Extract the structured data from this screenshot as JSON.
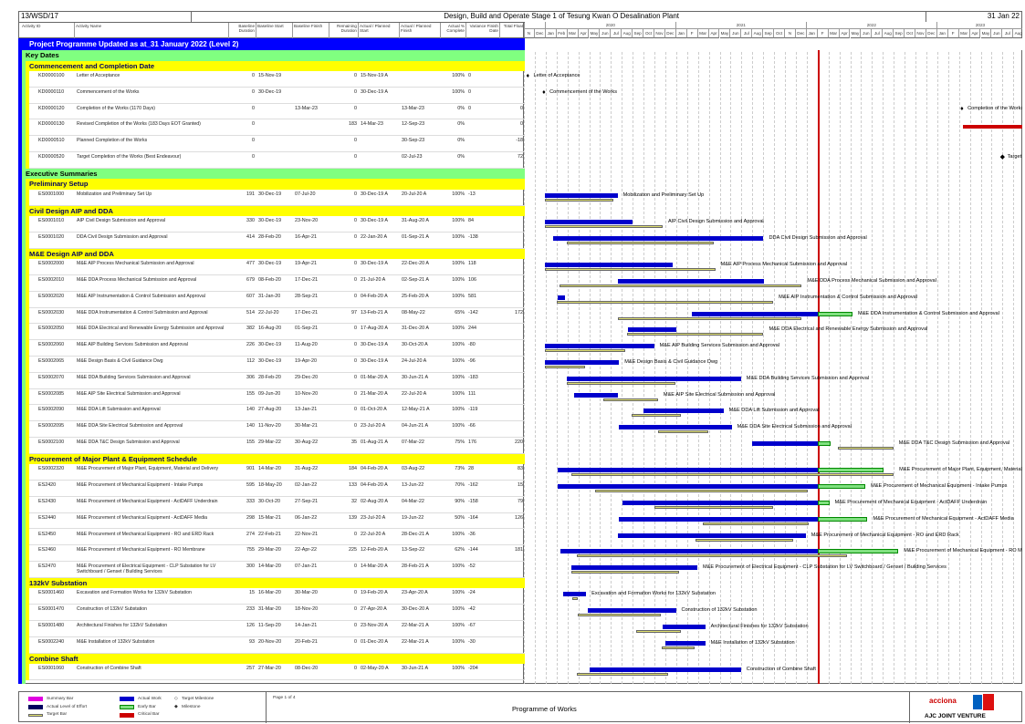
{
  "header": {
    "doc_ref": "13/WSD/17",
    "title": "Design, Build and Operate Stage 1 of Tesung Kwan O Desalination Plant",
    "date": "31 Jan 22"
  },
  "columns": [
    "Activity ID",
    "Activity Name",
    "Baseline Duration",
    "Baseline Start",
    "Baseline Finish",
    "Remaining Duration",
    "Actual / Planned Start",
    "Actual / Planned Finish",
    "Actual % Complete",
    "Variance Finish Date",
    "Total Float"
  ],
  "timeline": {
    "years": [
      "2020",
      "2021",
      "2022",
      "2023"
    ],
    "months_first": [
      "N",
      "Dec"
    ],
    "months": [
      "Jan",
      "Feb",
      "Mar",
      "Apr",
      "May",
      "Jun",
      "Jul",
      "Aug",
      "Sep",
      "Oct",
      "Nov",
      "Dec"
    ],
    "months_2021": [
      "Jan",
      "F",
      "Mar",
      "Apr",
      "May",
      "Jun",
      "Jul",
      "Aug",
      "Sep",
      "Oct",
      "N",
      "Dec"
    ],
    "months_2022": [
      "Jan",
      "F",
      "Mar",
      "Apr",
      "May",
      "Jun",
      "Jul",
      "Aug",
      "Sep",
      "Oct",
      "Nov",
      "Dec"
    ],
    "months_2023": [
      "Jan",
      "F",
      "Mar",
      "Apr",
      "May",
      "Jun",
      "Jul",
      "Aug"
    ],
    "data_date": "01-Feb-22"
  },
  "colors": {
    "project_band": "#0000ff",
    "level1_band": "#80ff80",
    "level2_band": "#ffff00",
    "actual_work": "#0000cc",
    "target_bar": "#e0e070",
    "early_bar": "#80e080",
    "critical_bar": "#cc0000",
    "data_date_line": "#cc0000"
  },
  "project": {
    "title": "Project Programme Updated as at_31 January 2022 (Level 2)"
  },
  "sections": [
    {
      "level": 1,
      "title": "Key Dates"
    },
    {
      "level": 2,
      "title": "Commencement and Completion Date",
      "rows": [
        {
          "id": "KD0000100",
          "name": "Letter of Acceptance",
          "bd": "0",
          "bs": "15-Nov-19",
          "bf": "",
          "rd": "0",
          "as": "15-Nov-19 A",
          "af": "",
          "pct": "100%",
          "var": "0",
          "tf": "",
          "type": "milestone"
        },
        {
          "id": "KD0000110",
          "name": "Commencement of the Works",
          "bd": "0",
          "bs": "30-Dec-19",
          "bf": "",
          "rd": "0",
          "as": "30-Dec-19 A",
          "af": "",
          "pct": "100%",
          "var": "0",
          "tf": "",
          "type": "milestone"
        },
        {
          "id": "KD0000120",
          "name": "Completion of the Works (1170 Days)",
          "bd": "0",
          "bs": "",
          "bf": "13-Mar-23",
          "rd": "0",
          "as": "",
          "af": "13-Mar-23",
          "pct": "0%",
          "var": "0",
          "tf": "0",
          "type": "milestone"
        },
        {
          "id": "KD0000130",
          "name": "Revised Completion of the Works (183 Days EOT Granted)",
          "bd": "0",
          "bs": "",
          "bf": "",
          "rd": "183",
          "as": "14-Mar-23",
          "af": "12-Sep-23",
          "pct": "0%",
          "var": "",
          "tf": "0",
          "type": "critical"
        },
        {
          "id": "KD0000510",
          "name": "Planned Completion of the Works",
          "bd": "0",
          "bs": "",
          "bf": "",
          "rd": "0",
          "as": "",
          "af": "30-Sep-23",
          "pct": "0%",
          "var": "",
          "tf": "-18",
          "type": "milestone"
        },
        {
          "id": "KD0000520",
          "name": "Target Completion of the Works (Best Endeavour)",
          "bd": "0",
          "bs": "",
          "bf": "",
          "rd": "0",
          "as": "",
          "af": "02-Jul-23",
          "pct": "0%",
          "var": "",
          "tf": "72",
          "type": "milestone-black",
          "label": "Target"
        }
      ]
    },
    {
      "level": 1,
      "title": "Executive Summaries"
    },
    {
      "level": 2,
      "title": "Preliminary Setup",
      "rows": [
        {
          "id": "ES0001000",
          "name": "Mobilization and Preliminary Set Up",
          "bd": "191",
          "bs": "30-Dec-19",
          "bf": "07-Jul-20",
          "rd": "0",
          "as": "30-Dec-19 A",
          "af": "20-Jul-20 A",
          "pct": "100%",
          "var": "-13",
          "tf": ""
        }
      ]
    },
    {
      "level": 2,
      "title": "Civil Design AIP and DDA",
      "rows": [
        {
          "id": "ES0001010",
          "name": "AIP Civil Design Submission and Approval",
          "bd": "330",
          "bs": "30-Dec-19",
          "bf": "23-Nov-20",
          "rd": "0",
          "as": "30-Dec-19 A",
          "af": "31-Aug-20 A",
          "pct": "100%",
          "var": "84",
          "tf": ""
        },
        {
          "id": "ES0001020",
          "name": "DDA Civil Design Submission and Approval",
          "bd": "414",
          "bs": "28-Feb-20",
          "bf": "16-Apr-21",
          "rd": "0",
          "as": "22-Jan-20 A",
          "af": "01-Sep-21 A",
          "pct": "100%",
          "var": "-138",
          "tf": ""
        }
      ]
    },
    {
      "level": 2,
      "title": "M&E Design AIP and DDA",
      "rows": [
        {
          "id": "ES0002000",
          "name": "M&E AIP Process Mechanical Submission and Approval",
          "bd": "477",
          "bs": "30-Dec-19",
          "bf": "19-Apr-21",
          "rd": "0",
          "as": "30-Dec-19 A",
          "af": "22-Dec-20 A",
          "pct": "100%",
          "var": "118",
          "tf": ""
        },
        {
          "id": "ES0002010",
          "name": "M&E DDA Process Mechanical Submission and Approval",
          "bd": "679",
          "bs": "08-Feb-20",
          "bf": "17-Dec-21",
          "rd": "0",
          "as": "21-Jul-20 A",
          "af": "02-Sep-21 A",
          "pct": "100%",
          "var": "106",
          "tf": ""
        },
        {
          "id": "ES0002020",
          "name": "M&E AIP Instrumentation & Control Submission and Approval",
          "bd": "607",
          "bs": "31-Jan-20",
          "bf": "28-Sep-21",
          "rd": "0",
          "as": "04-Feb-20 A",
          "af": "25-Feb-20 A",
          "pct": "100%",
          "var": "581",
          "tf": ""
        },
        {
          "id": "ES0002030",
          "name": "M&E DDA Instrumentation & Control Submission and Approval",
          "bd": "514",
          "bs": "22-Jul-20",
          "bf": "17-Dec-21",
          "rd": "97",
          "as": "13-Feb-21 A",
          "af": "08-May-22",
          "pct": "65%",
          "var": "-142",
          "tf": "172"
        },
        {
          "id": "ES0002050",
          "name": "M&E DDA Electrical and Renewable Energy Submission and Approval",
          "bd": "382",
          "bs": "16-Aug-20",
          "bf": "01-Sep-21",
          "rd": "0",
          "as": "17-Aug-20 A",
          "af": "31-Dec-20 A",
          "pct": "100%",
          "var": "244",
          "tf": ""
        },
        {
          "id": "ES0002060",
          "name": "M&E AIP Building Services Submission and Approval",
          "bd": "226",
          "bs": "30-Dec-19",
          "bf": "11-Aug-20",
          "rd": "0",
          "as": "30-Dec-19 A",
          "af": "30-Oct-20 A",
          "pct": "100%",
          "var": "-80",
          "tf": ""
        },
        {
          "id": "ES0002065",
          "name": "M&E Design Basis & Civil Guidance Dwg",
          "bd": "112",
          "bs": "30-Dec-19",
          "bf": "19-Apr-20",
          "rd": "0",
          "as": "30-Dec-19 A",
          "af": "24-Jul-20 A",
          "pct": "100%",
          "var": "-96",
          "tf": ""
        },
        {
          "id": "ES0002070",
          "name": "M&E DDA Building Services Submission and Approval",
          "bd": "306",
          "bs": "28-Feb-20",
          "bf": "29-Dec-20",
          "rd": "0",
          "as": "01-Mar-20 A",
          "af": "30-Jun-21 A",
          "pct": "100%",
          "var": "-183",
          "tf": ""
        },
        {
          "id": "ES0002085",
          "name": "M&E AIP Site Electrical Submission and Approval",
          "bd": "155",
          "bs": "09-Jun-20",
          "bf": "10-Nov-20",
          "rd": "0",
          "as": "21-Mar-20 A",
          "af": "22-Jul-20 A",
          "pct": "100%",
          "var": "111",
          "tf": ""
        },
        {
          "id": "ES0002090",
          "name": "M&E DDA Lift Submission and Approval",
          "bd": "140",
          "bs": "27-Aug-20",
          "bf": "13-Jan-21",
          "rd": "0",
          "as": "01-Oct-20 A",
          "af": "12-May-21 A",
          "pct": "100%",
          "var": "-119",
          "tf": ""
        },
        {
          "id": "ES0002095",
          "name": "M&E DDA Site Electrical Submission and Approval",
          "bd": "140",
          "bs": "11-Nov-20",
          "bf": "30-Mar-21",
          "rd": "0",
          "as": "23-Jul-20 A",
          "af": "04-Jun-21 A",
          "pct": "100%",
          "var": "-66",
          "tf": ""
        },
        {
          "id": "ES0002100",
          "name": "M&E DDA T&C Design Submission and Approval",
          "bd": "155",
          "bs": "29-Mar-22",
          "bf": "30-Aug-22",
          "rd": "35",
          "as": "01-Aug-21 A",
          "af": "07-Mar-22",
          "pct": "75%",
          "var": "176",
          "tf": "220"
        }
      ]
    },
    {
      "level": 2,
      "title": "Procurement of Major Plant & Equipment Schedule",
      "rows": [
        {
          "id": "ES0002320",
          "name": "M&E Procurement of Major Plant, Equipment, Material and Delivery",
          "bd": "901",
          "bs": "14-Mar-20",
          "bf": "31-Aug-22",
          "rd": "184",
          "as": "04-Feb-20 A",
          "af": "03-Aug-22",
          "pct": "73%",
          "var": "28",
          "tf": "83"
        },
        {
          "id": "ES2420",
          "name": "M&E Procurement of Mechanical Equipment - Intake Pumps",
          "bd": "595",
          "bs": "18-May-20",
          "bf": "02-Jan-22",
          "rd": "133",
          "as": "04-Feb-20 A",
          "af": "13-Jun-22",
          "pct": "70%",
          "var": "-162",
          "tf": "15"
        },
        {
          "id": "ES2430",
          "name": "M&E Procurement of Mechanical Equipment - ActDAFF Underdrain",
          "bd": "333",
          "bs": "30-Oct-20",
          "bf": "27-Sep-21",
          "rd": "32",
          "as": "02-Aug-20 A",
          "af": "04-Mar-22",
          "pct": "90%",
          "var": "-158",
          "tf": "79"
        },
        {
          "id": "ES2440",
          "name": "M&E Procurement of Mechanical Equipment - ActDAFF Media",
          "bd": "298",
          "bs": "15-Mar-21",
          "bf": "06-Jan-22",
          "rd": "139",
          "as": "23-Jul-20 A",
          "af": "19-Jun-22",
          "pct": "50%",
          "var": "-164",
          "tf": "126"
        },
        {
          "id": "ES2450",
          "name": "M&E Procurement of Mechanical Equipment - RO and ERD Rack",
          "bd": "274",
          "bs": "22-Feb-21",
          "bf": "22-Nov-21",
          "rd": "0",
          "as": "22-Jul-20 A",
          "af": "28-Dec-21 A",
          "pct": "100%",
          "var": "-36",
          "tf": ""
        },
        {
          "id": "ES2460",
          "name": "M&E Procurement of Mechanical Equipment - RO Membrane",
          "bd": "755",
          "bs": "29-Mar-20",
          "bf": "22-Apr-22",
          "rd": "225",
          "as": "12-Feb-20 A",
          "af": "13-Sep-22",
          "pct": "62%",
          "var": "-144",
          "tf": "181"
        },
        {
          "id": "ES2470",
          "name": "M&E Procurement of Electrical Equipment - CLP Substation for LV Switchboard / Genset / Building Services",
          "bd": "300",
          "bs": "14-Mar-20",
          "bf": "07-Jan-21",
          "rd": "0",
          "as": "14-Mar-20 A",
          "af": "28-Feb-21 A",
          "pct": "100%",
          "var": "-52",
          "tf": ""
        }
      ]
    },
    {
      "level": 2,
      "title": "132kV Substation",
      "rows": [
        {
          "id": "ES0001460",
          "name": "Excavation and Formation Works for 132kV Substation",
          "bd": "15",
          "bs": "16-Mar-20",
          "bf": "30-Mar-20",
          "rd": "0",
          "as": "19-Feb-20 A",
          "af": "23-Apr-20 A",
          "pct": "100%",
          "var": "-24",
          "tf": ""
        },
        {
          "id": "ES0001470",
          "name": "Construction of 132kV Substation",
          "bd": "233",
          "bs": "31-Mar-20",
          "bf": "18-Nov-20",
          "rd": "0",
          "as": "27-Apr-20 A",
          "af": "30-Dec-20 A",
          "pct": "100%",
          "var": "-42",
          "tf": ""
        },
        {
          "id": "ES0001480",
          "name": "Architectural Finishes for 132kV Substation",
          "bd": "126",
          "bs": "11-Sep-20",
          "bf": "14-Jan-21",
          "rd": "0",
          "as": "23-Nov-20 A",
          "af": "22-Mar-21 A",
          "pct": "100%",
          "var": "-67",
          "tf": ""
        },
        {
          "id": "ES0002240",
          "name": "M&E Installation of 132kV Substation",
          "bd": "93",
          "bs": "20-Nov-20",
          "bf": "20-Feb-21",
          "rd": "0",
          "as": "01-Dec-20 A",
          "af": "22-Mar-21 A",
          "pct": "100%",
          "var": "-30",
          "tf": ""
        }
      ]
    },
    {
      "level": 2,
      "title": "Combine Shaft",
      "rows": [
        {
          "id": "ES0001060",
          "name": "Construction of Combine Shaft",
          "bd": "257",
          "bs": "27-Mar-20",
          "bf": "08-Dec-20",
          "rd": "0",
          "as": "02-May-20 A",
          "af": "30-Jun-21 A",
          "pct": "100%",
          "var": "-204",
          "tf": ""
        }
      ]
    }
  ],
  "legend": {
    "summary_bar": "Summary Bar",
    "actual_loe": "Actual Level of Effort",
    "target_bar": "Target Bar",
    "actual_work": "Actual Work",
    "early_bar": "Early Bar",
    "critical_bar": "Critical Bar",
    "target_milestone": "Target Milestone",
    "milestone": "Milestone"
  },
  "footer": {
    "page": "Page 1 of 4",
    "title": "Programme of Works",
    "company": "AJC JOINT VENTURE",
    "logo_text": "acciona"
  }
}
